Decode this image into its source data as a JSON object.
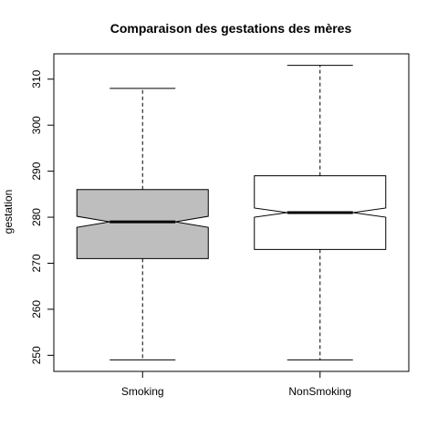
{
  "chart_data": {
    "type": "box",
    "title": "Comparaison des gestations des mères",
    "xlabel": "",
    "ylabel": "gestation",
    "ylim": [
      246.5,
      315.5
    ],
    "yticks": [
      250,
      260,
      270,
      280,
      290,
      300,
      310
    ],
    "notched": true,
    "grid": false,
    "categories": [
      "Smoking",
      "NonSmoking"
    ],
    "boxes": [
      {
        "label": "Smoking",
        "whisker_low": 249,
        "q1": 271,
        "median": 279,
        "q3": 286,
        "whisker_high": 308,
        "notch_low": 277.8,
        "notch_high": 280.2,
        "fill": "#bebebe"
      },
      {
        "label": "NonSmoking",
        "whisker_low": 249,
        "q1": 273,
        "median": 281,
        "q3": 289,
        "whisker_high": 313,
        "notch_low": 280.0,
        "notch_high": 282.0,
        "fill": "#ffffff"
      }
    ]
  }
}
